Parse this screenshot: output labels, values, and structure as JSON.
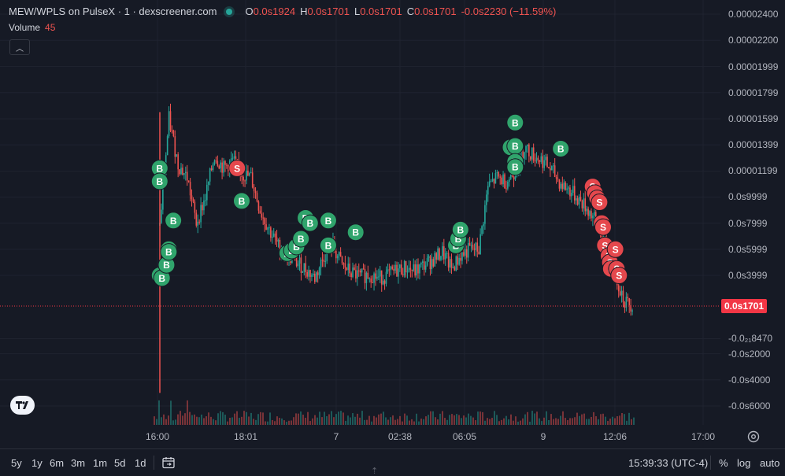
{
  "header": {
    "symbol": "MEW/WPLS on PulseX · 1 · dexscreener.com",
    "ohlc": [
      {
        "label": "O",
        "value": "0.0s1924"
      },
      {
        "label": "H",
        "value": "0.0s1701"
      },
      {
        "label": "L",
        "value": "0.0s1701"
      },
      {
        "label": "C",
        "value": "0.0s1701"
      }
    ],
    "change": "-0.0s2230 (−11.59%)"
  },
  "volume": {
    "label": "Volume",
    "value": "45"
  },
  "price_axis": {
    "ticks": [
      {
        "label": "0.00002400",
        "y": 2.4e-05
      },
      {
        "label": "0.00002200",
        "y": 2.2e-05
      },
      {
        "label": "0.00001999",
        "y": 1.999e-05
      },
      {
        "label": "0.00001799",
        "y": 1.799e-05
      },
      {
        "label": "0.00001599",
        "y": 1.599e-05
      },
      {
        "label": "0.00001399",
        "y": 1.399e-05
      },
      {
        "label": "0.00001199",
        "y": 1.199e-05
      },
      {
        "label": "0.0s9999",
        "y": 9.999e-06
      },
      {
        "label": "0.0s7999",
        "y": 7.999e-06
      },
      {
        "label": "0.0s5999",
        "y": 5.999e-06
      },
      {
        "label": "0.0s3999",
        "y": 3.999e-06
      },
      {
        "label": "-0.0₂₁8470",
        "y": -8.47e-07
      },
      {
        "label": "-0.0s2000",
        "y": -2e-06
      },
      {
        "label": "-0.0s4000",
        "y": -4e-06
      },
      {
        "label": "-0.0s6000",
        "y": -6e-06
      }
    ],
    "last_price": "0.0s1701"
  },
  "time_axis": {
    "ticks": [
      "16:00",
      "18:01",
      "7",
      "02:38",
      "06:05",
      "9",
      "12:06",
      "17:00"
    ]
  },
  "toolbar": {
    "timeframes": [
      "5y",
      "1y",
      "6m",
      "3m",
      "1m",
      "5d",
      "1d"
    ],
    "time_readout": "15:39:33 (UTC-4)",
    "options": [
      "%",
      "log",
      "auto"
    ]
  },
  "colors": {
    "up": "#26a69a",
    "down": "#ef5350",
    "buy": "#30a46c",
    "sell": "#e5484d",
    "price_line": "#f23645"
  },
  "chart_data": {
    "type": "candlestick",
    "title": "",
    "xlabel": "",
    "ylabel": "",
    "ylim": [
      -6.8e-06,
      2.5e-05
    ],
    "series_close": [
      [
        0,
        7.8e-06
      ],
      [
        2,
        1.6e-05
      ],
      [
        4,
        1.25e-05
      ],
      [
        6,
        1.15e-05
      ],
      [
        8,
        8e-06
      ],
      [
        10,
        1e-05
      ],
      [
        12,
        1.32e-05
      ],
      [
        14,
        1.22e-05
      ],
      [
        16,
        1.28e-05
      ],
      [
        18,
        1.18e-05
      ],
      [
        20,
        1.15e-05
      ],
      [
        22,
        9e-06
      ],
      [
        24,
        7.5e-06
      ],
      [
        26,
        6.2e-06
      ],
      [
        28,
        5.5e-06
      ],
      [
        30,
        5e-06
      ],
      [
        32,
        4.5e-06
      ],
      [
        34,
        3.8e-06
      ],
      [
        36,
        5.5e-06
      ],
      [
        38,
        6.2e-06
      ],
      [
        40,
        4.8e-06
      ],
      [
        42,
        4.2e-06
      ],
      [
        44,
        3.9e-06
      ],
      [
        46,
        4.1e-06
      ],
      [
        48,
        3.8e-06
      ],
      [
        50,
        4e-06
      ],
      [
        52,
        4.4e-06
      ],
      [
        54,
        4.6e-06
      ],
      [
        56,
        4.3e-06
      ],
      [
        58,
        4.8e-06
      ],
      [
        60,
        5.2e-06
      ],
      [
        62,
        5.8e-06
      ],
      [
        64,
        4.5e-06
      ],
      [
        66,
        5.5e-06
      ],
      [
        68,
        6e-06
      ],
      [
        70,
        6e-06
      ],
      [
        72,
        1.08e-05
      ],
      [
        74,
        1.15e-05
      ],
      [
        76,
        1.12e-05
      ],
      [
        78,
        1.2e-05
      ],
      [
        80,
        1.38e-05
      ],
      [
        82,
        1.32e-05
      ],
      [
        84,
        1.28e-05
      ],
      [
        86,
        1.2e-05
      ],
      [
        88,
        1.1e-05
      ],
      [
        90,
        1.05e-05
      ],
      [
        92,
        9.8e-06
      ],
      [
        94,
        9e-06
      ],
      [
        96,
        8e-06
      ],
      [
        98,
        6e-06
      ],
      [
        100,
        4e-06
      ],
      [
        102,
        2e-06
      ],
      [
        104,
        1.7e-06
      ]
    ],
    "markers": [
      {
        "t": 1,
        "label": "B",
        "y": 1.22e-05
      },
      {
        "t": 1,
        "label": "B",
        "y": 1.12e-05
      },
      {
        "t": 1,
        "label": "B",
        "y": 4e-06
      },
      {
        "t": 1.5,
        "label": "B",
        "y": 3.8e-06
      },
      {
        "t": 2.5,
        "label": "B",
        "y": 4.8e-06
      },
      {
        "t": 3,
        "label": "B",
        "y": 6e-06
      },
      {
        "t": 3,
        "label": "B",
        "y": 5.8e-06
      },
      {
        "t": 4,
        "label": "B",
        "y": 8.2e-06
      },
      {
        "t": 18,
        "label": "S",
        "y": 1.22e-05
      },
      {
        "t": 19,
        "label": "B",
        "y": 9.7e-06
      },
      {
        "t": 29,
        "label": "B",
        "y": 5.7e-06
      },
      {
        "t": 30,
        "label": "B",
        "y": 5.9e-06
      },
      {
        "t": 31,
        "label": "B",
        "y": 6.2e-06
      },
      {
        "t": 32,
        "label": "B",
        "y": 6.8e-06
      },
      {
        "t": 33,
        "label": "B",
        "y": 8.4e-06
      },
      {
        "t": 34,
        "label": "B",
        "y": 8e-06
      },
      {
        "t": 38,
        "label": "B",
        "y": 8.2e-06
      },
      {
        "t": 38,
        "label": "B",
        "y": 6.3e-06
      },
      {
        "t": 44,
        "label": "B",
        "y": 7.3e-06
      },
      {
        "t": 66,
        "label": "B",
        "y": 6.3e-06
      },
      {
        "t": 66.5,
        "label": "B",
        "y": 6.8e-06
      },
      {
        "t": 67,
        "label": "B",
        "y": 7.5e-06
      },
      {
        "t": 79,
        "label": "B",
        "y": 1.57e-05
      },
      {
        "t": 78,
        "label": "B",
        "y": 1.38e-05
      },
      {
        "t": 79,
        "label": "B",
        "y": 1.39e-05
      },
      {
        "t": 79,
        "label": "B",
        "y": 1.27e-05
      },
      {
        "t": 79,
        "label": "B",
        "y": 1.23e-05
      },
      {
        "t": 89,
        "label": "B",
        "y": 1.37e-05
      },
      {
        "t": 96,
        "label": "S",
        "y": 1.08e-05
      },
      {
        "t": 96.5,
        "label": "S",
        "y": 1.03e-05
      },
      {
        "t": 97,
        "label": "S",
        "y": 9.9e-06
      },
      {
        "t": 97.5,
        "label": "S",
        "y": 9.6e-06
      },
      {
        "t": 98,
        "label": "S",
        "y": 8e-06
      },
      {
        "t": 98.3,
        "label": "S",
        "y": 7.7e-06
      },
      {
        "t": 98.7,
        "label": "S",
        "y": 6.3e-06
      },
      {
        "t": 99.5,
        "label": "S",
        "y": 5.5e-06
      },
      {
        "t": 99.8,
        "label": "S",
        "y": 5e-06
      },
      {
        "t": 100,
        "label": "S",
        "y": 4.5e-06
      },
      {
        "t": 101,
        "label": "S",
        "y": 6e-06
      },
      {
        "t": 101.3,
        "label": "S",
        "y": 4.5e-06
      },
      {
        "t": 101.8,
        "label": "S",
        "y": 4e-06
      }
    ]
  }
}
